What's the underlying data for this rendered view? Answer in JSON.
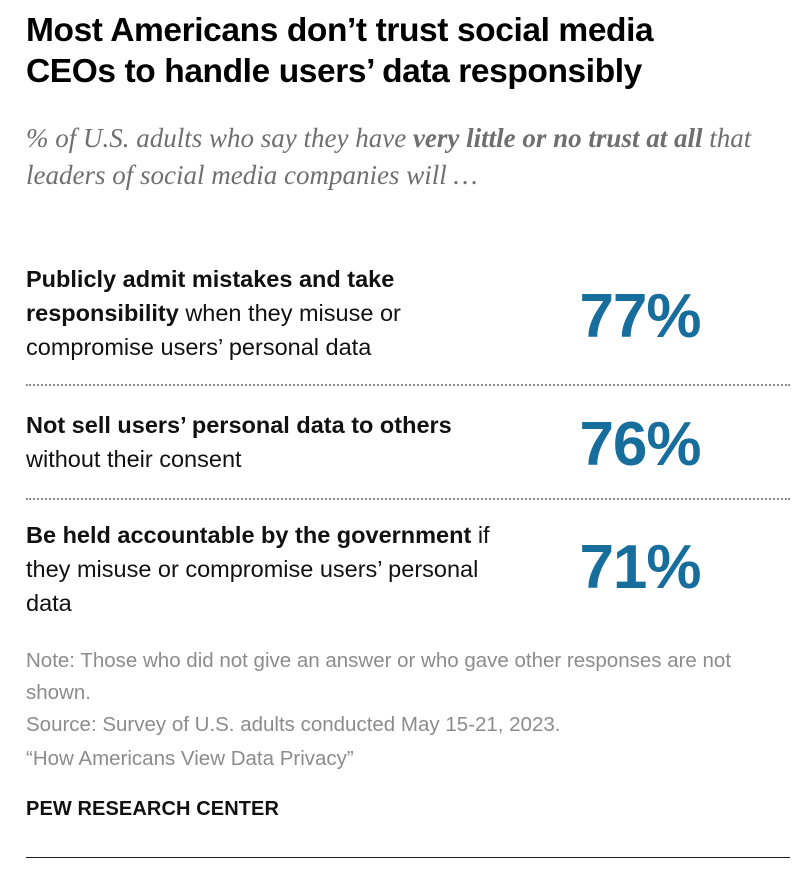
{
  "title_lines": [
    "Most Americans don’t trust social media",
    "CEOs to handle users’ data responsibly"
  ],
  "subtitle": {
    "part1": "% of U.S. adults who say they have ",
    "bold": "very little or no trust at all",
    "part2": " that leaders of social media companies will …"
  },
  "chart_data": {
    "type": "table",
    "unit": "%",
    "rows": [
      {
        "label_bold": "Publicly admit mistakes and take responsibility",
        "label_rest": " when they misuse or compromise users’ personal data",
        "value": 77,
        "display": "77%"
      },
      {
        "label_bold": "Not sell users’ personal data to others",
        "label_rest": " without their consent",
        "value": 76,
        "display": "76%"
      },
      {
        "label_bold": "Be held accountable by the government",
        "label_rest": " if they misuse or compromise users’ personal data",
        "value": 71,
        "display": "71%"
      }
    ]
  },
  "notes": {
    "note": "Note: Those who did not give an answer or who gave other responses are not shown.",
    "source": "Source: Survey of U.S. adults conducted May 15-21, 2023.",
    "report": "“How Americans View Data Privacy”"
  },
  "brand": "PEW RESEARCH CENTER",
  "colors": {
    "accent": "#176e9c",
    "subtitle": "#6f6f6f",
    "note": "#8c8c8c"
  }
}
